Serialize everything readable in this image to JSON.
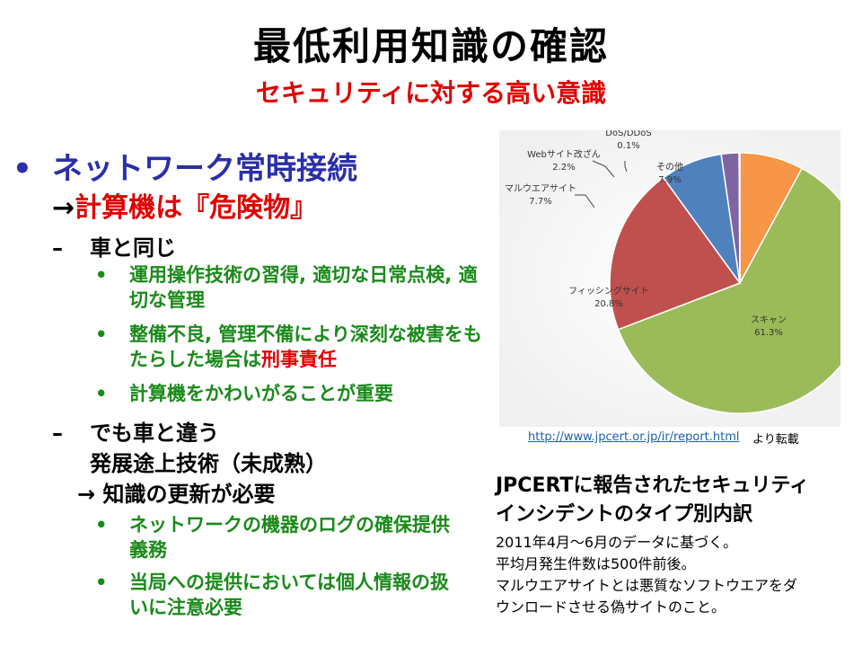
{
  "slide": {
    "title": "最低利用知識の確認",
    "subtitle": "セキュリティに対する高い意識"
  },
  "bullets": {
    "main": "ネットワーク常時接続",
    "arrow": "→",
    "danger": "計算機は『危険物』",
    "sub1": "車と同じ",
    "sub1_items": [
      "運用操作技術の習得, 適切な日常点検, 適切な管理",
      "整備不良, 管理不備により深刻な被害をもたらした場合は",
      "計算機をかわいがることが重要"
    ],
    "sub1_item2_red": "刑事責任",
    "sub2_line1": "でも車と違う",
    "sub2_line2": "発展途上技術（未成熟）",
    "sub2_line3": "→ 知識の更新が必要",
    "sub2_items": [
      "ネットワークの機器のログの確保提供義務",
      "当局への提供においては個人情報の扱いに注意必要"
    ]
  },
  "chart_data": {
    "type": "pie",
    "slices": [
      {
        "label": "スキャン",
        "value": 61.3,
        "value_label": "61.3%",
        "color": "#9bbb59"
      },
      {
        "label": "フィッシングサイト",
        "value": 20.8,
        "value_label": "20.8%",
        "color": "#c0504d"
      },
      {
        "label": "マルウエアサイト",
        "value": 7.7,
        "value_label": "7.7%",
        "color": "#4f81bd"
      },
      {
        "label": "Webサイト改ざん",
        "value": 2.2,
        "value_label": "2.2%",
        "color": "#8064a2"
      },
      {
        "label": "DoS/DDoS",
        "value": 0.1,
        "value_label": "0.1%",
        "color": "#4bacc6"
      },
      {
        "label": "その他",
        "value": 7.9,
        "value_label": "7.9%",
        "color": "#f79646"
      }
    ]
  },
  "source": {
    "url": "http://www.jpcert.or.jp/ir/report.html",
    "note": "より転載"
  },
  "caption": {
    "line1": "JPCERTに報告されたセキュリティ",
    "line2": "インシデントのタイプ別内訳",
    "notes": [
      "2011年4月～6月のデータに基づく。",
      "平均月発生件数は500件前後。",
      "マルウエアサイトとは悪質なソフトウエアをダ",
      "ウンロードさせる偽サイトのこと。"
    ]
  }
}
